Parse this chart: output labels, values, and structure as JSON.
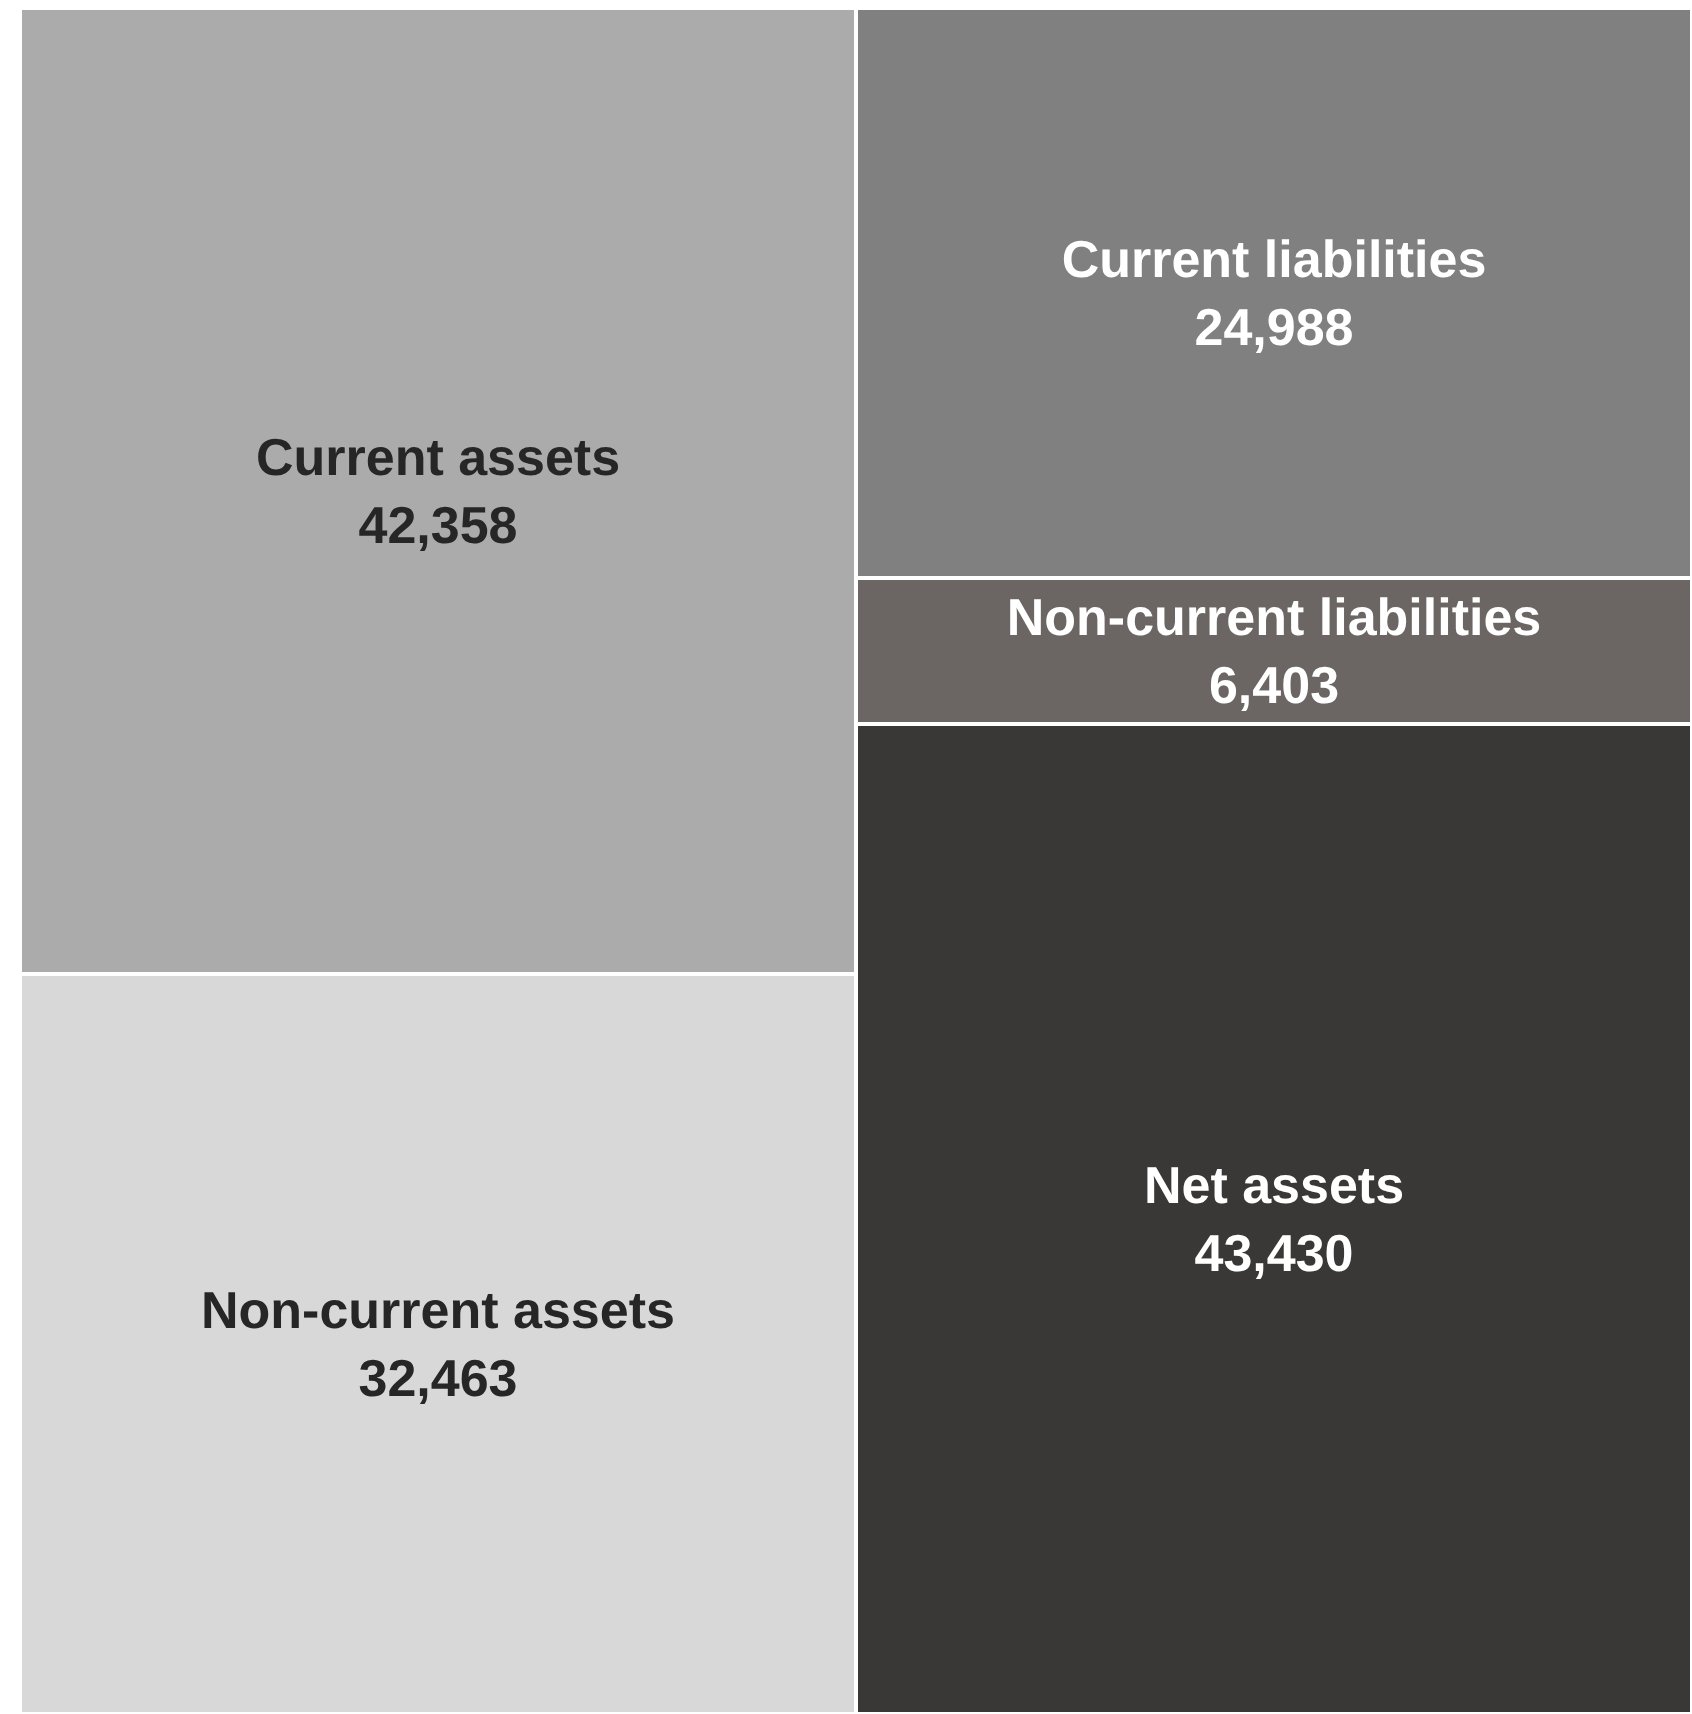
{
  "chart_data": {
    "type": "bar",
    "stacked": true,
    "categories": [
      null,
      null
    ],
    "legend": false,
    "tick_labels": false,
    "series": [
      {
        "name": "Non-current assets",
        "color": "#d8d8d8",
        "values": [
          32463,
          null
        ],
        "value_labels": [
          "32,463",
          null
        ]
      },
      {
        "name": "Current assets",
        "color": "#ababab",
        "values": [
          42358,
          null
        ],
        "value_labels": [
          "42,358",
          null
        ]
      },
      {
        "name": "Net assets",
        "color": "#3a3836",
        "values": [
          null,
          43430
        ],
        "value_labels": [
          null,
          "43,430"
        ]
      },
      {
        "name": "Non-current liabilities",
        "color": "#6b6663",
        "values": [
          null,
          6403
        ],
        "value_labels": [
          null,
          "6,403"
        ]
      },
      {
        "name": "Current liabilities",
        "color": "#808080",
        "values": [
          null,
          24988
        ],
        "value_labels": [
          null,
          "24,988"
        ]
      }
    ]
  }
}
